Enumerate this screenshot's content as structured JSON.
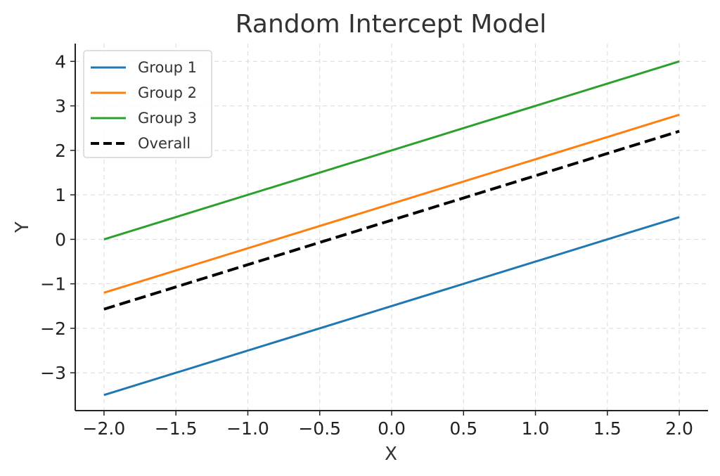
{
  "chart_data": {
    "type": "line",
    "title": "Random Intercept Model",
    "xlabel": "X",
    "ylabel": "Y",
    "xlim": [
      -2.2,
      2.2
    ],
    "ylim": [
      -3.85,
      4.4
    ],
    "xticks": [
      -2.0,
      -1.5,
      -1.0,
      -0.5,
      0.0,
      0.5,
      1.0,
      1.5,
      2.0
    ],
    "xtick_labels": [
      "−2.0",
      "−1.5",
      "−1.0",
      "−0.5",
      "0.0",
      "0.5",
      "1.0",
      "1.5",
      "2.0"
    ],
    "yticks": [
      -3,
      -2,
      -1,
      0,
      1,
      2,
      3,
      4
    ],
    "ytick_labels": [
      "−3",
      "−2",
      "−1",
      "0",
      "1",
      "2",
      "3",
      "4"
    ],
    "grid": true,
    "legend_position": "top-left",
    "series": [
      {
        "name": "Group 1",
        "color": "#1f77b4",
        "style": "solid",
        "x": [
          -2.0,
          2.0
        ],
        "y": [
          -3.5,
          0.5
        ]
      },
      {
        "name": "Group 2",
        "color": "#ff7f0e",
        "style": "solid",
        "x": [
          -2.0,
          2.0
        ],
        "y": [
          -1.2,
          2.8
        ]
      },
      {
        "name": "Group 3",
        "color": "#2ca02c",
        "style": "solid",
        "x": [
          -2.0,
          2.0
        ],
        "y": [
          0.0,
          4.0
        ]
      },
      {
        "name": "Overall",
        "color": "#000000",
        "style": "dashed",
        "x": [
          -2.0,
          2.0
        ],
        "y": [
          -1.57,
          2.43
        ]
      }
    ]
  }
}
